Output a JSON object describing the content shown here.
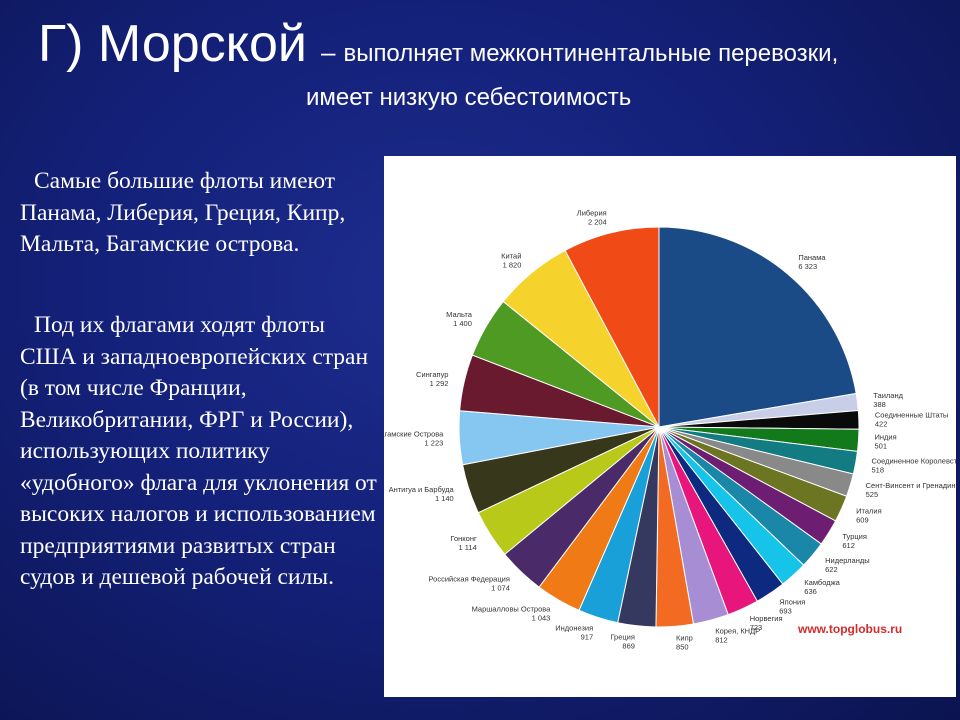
{
  "slide": {
    "title_main": "Г) Морской",
    "title_dash": "–",
    "title_rest": "выполняет межконтинентальные перевозки,",
    "subtitle": "имеет низкую себестоимость",
    "para1": "Самые большие флоты имеют Панама, Либерия, Греция, Кипр, Мальта, Багамские острова.",
    "para2": "Под их флагами ходят флоты США и западноевропейских стран (в том числе Франции, Великобритании, ФРГ и России), использующих политику «удобного» флага для уклонения от высоких налогов и использованием предприятиями развитых стран судов и дешевой рабочей силы."
  },
  "watermark": "www.topglobus.ru",
  "chart_data": {
    "type": "pie",
    "slices": [
      {
        "label": "Панама",
        "value_label": "6 323",
        "value": 6323,
        "color": "#1b4b86"
      },
      {
        "label": "Таиланд",
        "value_label": "388",
        "value": 388,
        "color": "#c8cde8"
      },
      {
        "label": "Соединенные Штаты",
        "value_label": "422",
        "value": 422,
        "color": "#0a0a0a"
      },
      {
        "label": "Индия",
        "value_label": "501",
        "value": 501,
        "color": "#137a1c"
      },
      {
        "label": "Соединенное Королевство",
        "value_label": "518",
        "value": 518,
        "color": "#127c82"
      },
      {
        "label": "Сент-Винсент и Гренадины",
        "value_label": "525",
        "value": 525,
        "color": "#898989"
      },
      {
        "label": "Италия",
        "value_label": "609",
        "value": 609,
        "color": "#6c7522"
      },
      {
        "label": "Турция",
        "value_label": "612",
        "value": 612,
        "color": "#6d1d72"
      },
      {
        "label": "Нидерланды",
        "value_label": "622",
        "value": 622,
        "color": "#1a86a8"
      },
      {
        "label": "Камбоджа",
        "value_label": "636",
        "value": 636,
        "color": "#15c4e8"
      },
      {
        "label": "Япония",
        "value_label": "693",
        "value": 693,
        "color": "#0e2a80"
      },
      {
        "label": "Норвегия",
        "value_label": "723",
        "value": 723,
        "color": "#e8167c"
      },
      {
        "label": "Корея, КНДР",
        "value_label": "812",
        "value": 812,
        "color": "#a78ed4"
      },
      {
        "label": "Кипр",
        "value_label": "850",
        "value": 850,
        "color": "#f36a22"
      },
      {
        "label": "Греция",
        "value_label": "869",
        "value": 869,
        "color": "#35385f"
      },
      {
        "label": "Индонезия",
        "value_label": "917",
        "value": 917,
        "color": "#1aa0d8"
      },
      {
        "label": "Маршалловы Острова",
        "value_label": "1 043",
        "value": 1043,
        "color": "#f07a16"
      },
      {
        "label": "Российская Федерация",
        "value_label": "1 074",
        "value": 1074,
        "color": "#4a2a68"
      },
      {
        "label": "Гонконг",
        "value_label": "1 114",
        "value": 1114,
        "color": "#b8c91a"
      },
      {
        "label": "Антигуа и Барбуда",
        "value_label": "1 140",
        "value": 1140,
        "color": "#37381b"
      },
      {
        "label": "Багамские Острова",
        "value_label": "1 223",
        "value": 1223,
        "color": "#86c7f2"
      },
      {
        "label": "Сингапур",
        "value_label": "1 292",
        "value": 1292,
        "color": "#6a1a2e"
      },
      {
        "label": "Мальта",
        "value_label": "1 400",
        "value": 1400,
        "color": "#4e9a22"
      },
      {
        "label": "Китай",
        "value_label": "1 820",
        "value": 1820,
        "color": "#f6d22c"
      },
      {
        "label": "Либерия",
        "value_label": "2 204",
        "value": 2204,
        "color": "#f04a16"
      }
    ]
  }
}
